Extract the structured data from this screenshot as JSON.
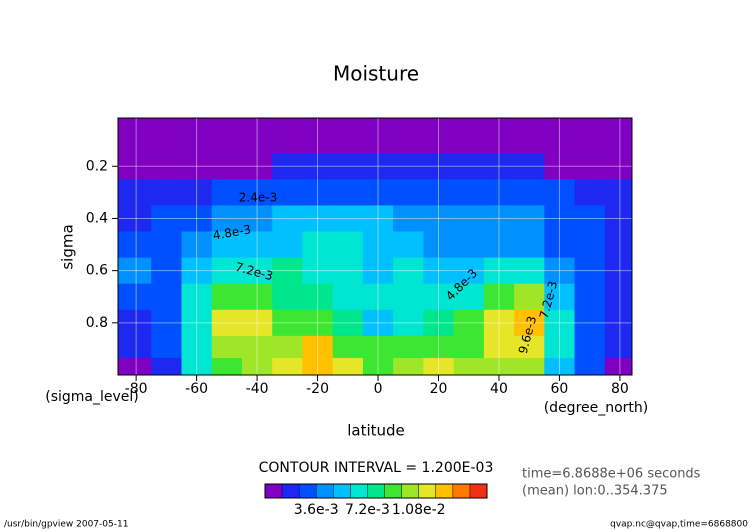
{
  "chart_data": {
    "type": "contour",
    "title": "Moisture",
    "xlabel": "latitude",
    "xunits": "(degree_north)",
    "ylabel": "sigma",
    "yunits": "(sigma_level)",
    "x": [
      -80,
      -70,
      -60,
      -50,
      -40,
      -30,
      -20,
      -10,
      0,
      10,
      20,
      30,
      40,
      50,
      60,
      70,
      80
    ],
    "y": [
      0.1,
      0.2,
      0.3,
      0.4,
      0.5,
      0.6,
      0.7,
      0.8,
      0.9,
      0.97
    ],
    "z": [
      [
        0.0005,
        0.0005,
        0.0005,
        0.0005,
        0.0005,
        0.0005,
        0.0005,
        0.0005,
        0.0005,
        0.0005,
        0.0005,
        0.0005,
        0.0005,
        0.0005,
        0.0005,
        0.0005,
        0.0005
      ],
      [
        0.0008,
        0.0008,
        0.0008,
        0.0008,
        0.0008,
        0.0015,
        0.0015,
        0.0015,
        0.0015,
        0.0015,
        0.0015,
        0.0015,
        0.0015,
        0.0015,
        0.0008,
        0.0008,
        0.0008
      ],
      [
        0.0013,
        0.0015,
        0.0015,
        0.0025,
        0.0025,
        0.0025,
        0.003,
        0.003,
        0.003,
        0.003,
        0.003,
        0.003,
        0.003,
        0.0025,
        0.0025,
        0.0015,
        0.0015
      ],
      [
        0.002,
        0.0025,
        0.0035,
        0.0042,
        0.0042,
        0.005,
        0.0055,
        0.0055,
        0.0048,
        0.004,
        0.004,
        0.004,
        0.004,
        0.004,
        0.003,
        0.0025,
        0.002
      ],
      [
        0.003,
        0.0025,
        0.004,
        0.005,
        0.0052,
        0.0058,
        0.006,
        0.006,
        0.0052,
        0.0058,
        0.0044,
        0.004,
        0.0045,
        0.004,
        0.0032,
        0.0025,
        0.002
      ],
      [
        0.0036,
        0.0025,
        0.005,
        0.0065,
        0.007,
        0.0073,
        0.0065,
        0.0065,
        0.0055,
        0.006,
        0.0055,
        0.0048,
        0.006,
        0.0065,
        0.004,
        0.0028,
        0.0022
      ],
      [
        0.0028,
        0.0025,
        0.006,
        0.0085,
        0.0085,
        0.008,
        0.0075,
        0.007,
        0.006,
        0.0065,
        0.0065,
        0.007,
        0.009,
        0.01,
        0.005,
        0.003,
        0.0022
      ],
      [
        0.002,
        0.003,
        0.007,
        0.011,
        0.0115,
        0.009,
        0.0085,
        0.0075,
        0.005,
        0.007,
        0.008,
        0.0085,
        0.011,
        0.013,
        0.006,
        0.0032,
        0.0023
      ],
      [
        0.0013,
        0.0025,
        0.0065,
        0.01,
        0.0105,
        0.01,
        0.012,
        0.0095,
        0.0085,
        0.009,
        0.0095,
        0.0095,
        0.011,
        0.0115,
        0.006,
        0.003,
        0.002
      ],
      [
        0.0008,
        0.002,
        0.006,
        0.0085,
        0.01,
        0.0115,
        0.013,
        0.0115,
        0.009,
        0.01,
        0.0115,
        0.0105,
        0.0105,
        0.01,
        0.0055,
        0.0028,
        0.001
      ]
    ],
    "xlim": [
      -86,
      84
    ],
    "ylim": [
      0.015,
      1.0
    ],
    "y_inverted": true,
    "xticks": [
      -80,
      -60,
      -40,
      -20,
      0,
      20,
      40,
      60,
      80
    ],
    "yticks": [
      0.2,
      0.4,
      0.6,
      0.8
    ],
    "grid": true,
    "levels": [
      0.0012,
      0.0024,
      0.0036,
      0.0048,
      0.006,
      0.0072,
      0.0084,
      0.0096,
      0.0108,
      0.012,
      0.0132,
      0.0144
    ],
    "colors": [
      "#7f00c0",
      "#1e28f0",
      "#0050ff",
      "#0090ff",
      "#00c0ff",
      "#00e6d2",
      "#00e68c",
      "#3ce632",
      "#a0e628",
      "#e6e628",
      "#ffc000",
      "#ff7800",
      "#f03214"
    ],
    "contour_labels": [
      "2.4e-3",
      "4.8e-3",
      "7.2e-3",
      "4.8e-3",
      "9.6e-3",
      "7.2e-3"
    ],
    "colorbar_ticks": [
      {
        "value": 0.0036,
        "label": "3.6e-3"
      },
      {
        "value": 0.0072,
        "label": "7.2e-3"
      },
      {
        "value": 0.0108,
        "label": "1.08e-2"
      }
    ],
    "contour_interval": "CONTOUR INTERVAL = 1.200E-03",
    "info": [
      "time=6.8688e+06 seconds",
      "(mean) lon:0..354.375"
    ],
    "footer_left": "/usr/bin/gpview  2007-05-11",
    "footer_right": "qvap.nc@qvap,time=6868800"
  }
}
